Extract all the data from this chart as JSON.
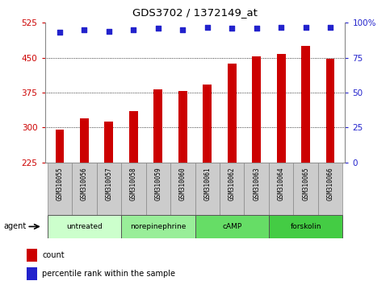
{
  "title": "GDS3702 / 1372149_at",
  "samples": [
    "GSM310055",
    "GSM310056",
    "GSM310057",
    "GSM310058",
    "GSM310059",
    "GSM310060",
    "GSM310061",
    "GSM310062",
    "GSM310063",
    "GSM310064",
    "GSM310065",
    "GSM310066"
  ],
  "counts": [
    295,
    320,
    312,
    335,
    382,
    378,
    393,
    438,
    453,
    458,
    475,
    448
  ],
  "percentile_ranks": [
    93,
    95,
    94,
    95,
    96,
    95,
    97,
    96,
    96,
    97,
    97,
    97
  ],
  "ylim_left": [
    225,
    525
  ],
  "yticks_left": [
    225,
    300,
    375,
    450,
    525
  ],
  "ylim_right": [
    0,
    100
  ],
  "yticks_right": [
    0,
    25,
    50,
    75,
    100
  ],
  "bar_color": "#cc0000",
  "dot_color": "#2222cc",
  "left_tick_color": "#cc0000",
  "right_tick_color": "#2222cc",
  "groups": [
    {
      "label": "untreated",
      "start": 0,
      "end": 3,
      "color": "#ccffcc"
    },
    {
      "label": "norepinephrine",
      "start": 3,
      "end": 6,
      "color": "#99ee99"
    },
    {
      "label": "cAMP",
      "start": 6,
      "end": 9,
      "color": "#66dd66"
    },
    {
      "label": "forskolin",
      "start": 9,
      "end": 12,
      "color": "#44cc44"
    }
  ],
  "agent_label": "agent",
  "legend_count_label": "count",
  "legend_percentile_label": "percentile rank within the sample",
  "grid_color": "#000000",
  "background_color": "#ffffff",
  "xticklabel_bg": "#cccccc",
  "bar_width": 0.35
}
